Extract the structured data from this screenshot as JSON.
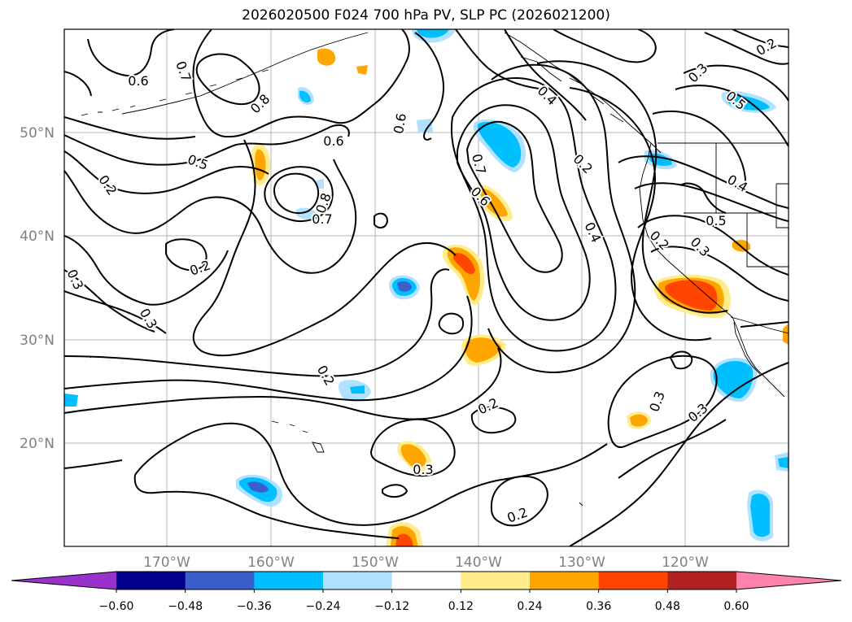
{
  "title": "2026020500 F024 700 hPa PV, SLP PC (2026021200)",
  "map": {
    "latitude_labels": [
      "50°N",
      "40°N",
      "30°N",
      "20°N"
    ],
    "longitude_labels": [
      "170°W",
      "160°W",
      "150°W",
      "140°W",
      "130°W",
      "120°W"
    ],
    "contour_labels": [
      "0.6",
      "0.7",
      "0.8",
      "0.5",
      "0.2",
      "0.8",
      "0.7",
      "0.6",
      "0.2",
      "0.3",
      "0.3",
      "0.2",
      "0.6",
      "0.7",
      "0.6",
      "0.4",
      "0.2",
      "0.4",
      "0.3",
      "0.4",
      "0.5",
      "0.5",
      "0.2",
      "0.3",
      "0.2",
      "0.3",
      "0.2",
      "0.3",
      "0.3",
      "0.2"
    ]
  },
  "colorbar": {
    "tick_labels": [
      "−0.60",
      "−0.48",
      "−0.36",
      "−0.24",
      "−0.12",
      "0.12",
      "0.24",
      "0.36",
      "0.48",
      "0.60"
    ],
    "colors": [
      "#9932cc",
      "#00008b",
      "#3a5fcd",
      "#00bfff",
      "#b0e2ff",
      "#ffffff",
      "#ffec8b",
      "#ffa500",
      "#ff4500",
      "#b22222",
      "#ff82ab"
    ]
  }
}
